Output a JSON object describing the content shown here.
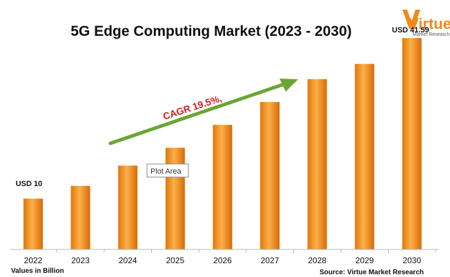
{
  "chart_data": {
    "type": "bar",
    "title": "5G Edge Computing Market (2023 - 2030)",
    "categories": [
      "2022",
      "2023",
      "2024",
      "2025",
      "2026",
      "2027",
      "2028",
      "2029",
      "2030"
    ],
    "values": [
      10,
      12.5,
      16.5,
      20.0,
      24.5,
      29.0,
      33.5,
      36.5,
      41.59
    ],
    "ylim": [
      0,
      45
    ],
    "grid": false,
    "legend": "none",
    "bar_color": "#f7941d",
    "data_labels": {
      "first": "USD 10",
      "last": "USD 41.59"
    },
    "annotations": {
      "cagr": "CAGR 19.5%,",
      "arrow_color": "#7ab648"
    }
  },
  "notes": {
    "units": "Values in Billion",
    "source": "Source: Virtue Market Research"
  },
  "logo": {
    "name": "Virtue",
    "subtitle": "Market Research"
  },
  "tooltip": {
    "text": "Plot Area"
  }
}
